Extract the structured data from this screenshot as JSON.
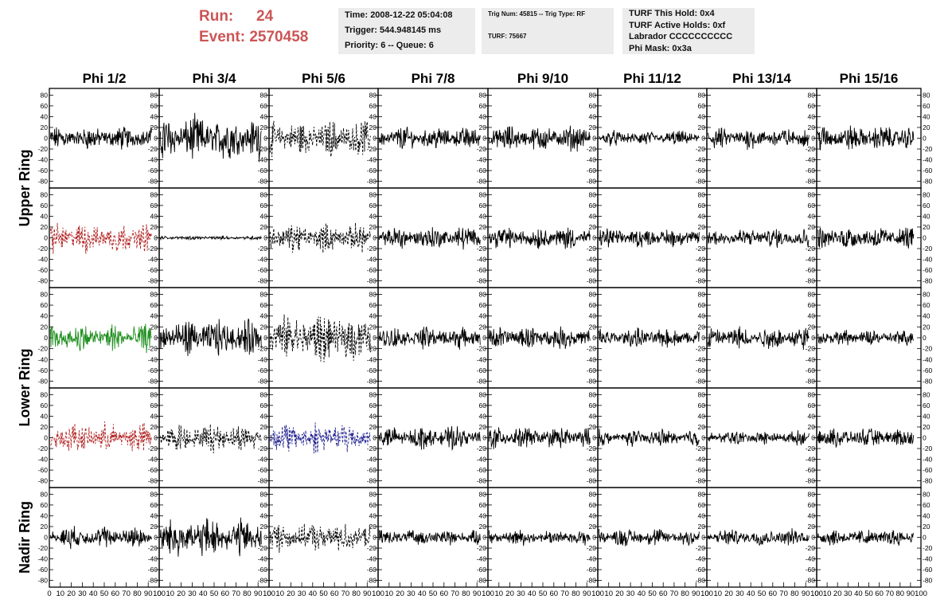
{
  "header": {
    "run_label": "Run:",
    "run_value": "24",
    "event_label": "Event:",
    "event_value": "2570458",
    "time": "Time: 2008-12-22 05:04:08",
    "trigger": "Trigger: 544.948145 ms",
    "priority_queue": "Priority: 6 -- Queue: 6",
    "trig_num_type": "Trig Num: 45815 -- Trig Type: RF",
    "turf": "TURF: 75667",
    "turf_this_hold": "TURF This Hold: 0x4",
    "turf_active_holds": "TURF Active Holds: 0xf",
    "labrador": "Labrador CCCCCCCCCC",
    "phi_mask": "Phi Mask: 0x3a"
  },
  "chart_data": {
    "type": "line",
    "columns": [
      "Phi 1/2",
      "Phi 3/4",
      "Phi 5/6",
      "Phi 7/8",
      "Phi 9/10",
      "Phi 11/12",
      "Phi 13/14",
      "Phi 15/16"
    ],
    "row_labels": [
      {
        "text": "Upper Ring",
        "rows": [
          0,
          1
        ]
      },
      {
        "text": "Lower Ring",
        "rows": [
          2,
          3
        ]
      },
      {
        "text": "Nadir Ring",
        "rows": [
          4,
          4
        ]
      }
    ],
    "ylim": [
      -85,
      85
    ],
    "xlim": [
      0,
      100
    ],
    "y_ticks": [
      -80,
      -60,
      -40,
      -20,
      0,
      20,
      40,
      60,
      80
    ],
    "x_ticks": [
      0,
      10,
      20,
      30,
      40,
      50,
      60,
      70,
      80,
      90,
      100
    ],
    "x_tick_labels": [
      "0",
      "10",
      "20",
      "30",
      "40",
      "50",
      "60",
      "70",
      "80",
      "90",
      "100"
    ],
    "y_tick_labels": [
      "-80",
      "-60",
      "-40",
      "-20",
      "0",
      "20",
      "40",
      "60",
      "80"
    ],
    "grid": false,
    "colors": {
      "default": "#000000",
      "red": "#b22222",
      "green": "#1f8f1f",
      "blue": "#1f1f8f"
    },
    "trace_amplitudes": [
      [
        18,
        35,
        28,
        18,
        20,
        12,
        17,
        20
      ],
      [
        24,
        3,
        22,
        18,
        18,
        15,
        15,
        18
      ],
      [
        22,
        28,
        38,
        17,
        17,
        15,
        18,
        12
      ],
      [
        24,
        22,
        24,
        17,
        17,
        13,
        11,
        15
      ],
      [
        17,
        30,
        22,
        12,
        12,
        14,
        13,
        13
      ]
    ],
    "trace_styles": [
      [
        "solid",
        "solid",
        "dashed",
        "solid",
        "solid",
        "solid",
        "solid",
        "solid"
      ],
      [
        "dashed-red",
        "solid",
        "dashed",
        "solid",
        "solid",
        "solid",
        "solid",
        "solid"
      ],
      [
        "solid-green",
        "solid",
        "dashed",
        "solid",
        "solid",
        "solid",
        "solid",
        "solid"
      ],
      [
        "dashed-red",
        "dashed",
        "dashed-blue",
        "solid",
        "solid",
        "solid",
        "solid",
        "solid"
      ],
      [
        "solid",
        "solid",
        "dashed",
        "solid",
        "solid",
        "solid",
        "solid",
        "solid"
      ]
    ]
  }
}
